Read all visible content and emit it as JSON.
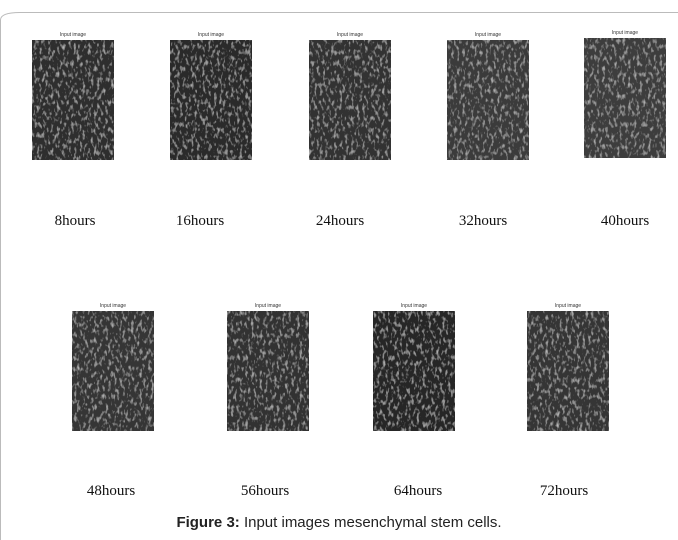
{
  "figure": {
    "panels": [
      {
        "title": "Input image",
        "label": "8hours"
      },
      {
        "title": "Input image",
        "label": "16hours"
      },
      {
        "title": "Input image",
        "label": "24hours"
      },
      {
        "title": "Input image",
        "label": "32hours"
      },
      {
        "title": "Input image",
        "label": "40hours"
      },
      {
        "title": "Input image",
        "label": "48hours"
      },
      {
        "title": "Input image",
        "label": "56hours"
      },
      {
        "title": "Input image",
        "label": "64hours"
      },
      {
        "title": "Input image",
        "label": "72hours"
      }
    ],
    "caption": {
      "label": "Figure 3:",
      "text": "Input images mesenchymal stem cells."
    }
  }
}
